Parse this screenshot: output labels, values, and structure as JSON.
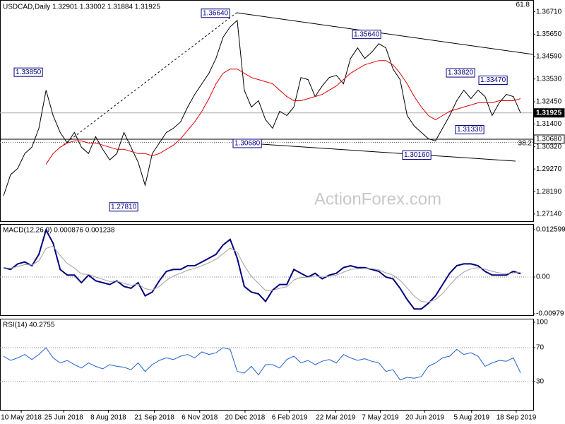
{
  "chart_data": [
    {
      "type": "line",
      "title": "USDCAD,Daily 1.32901 1.33002 1.31884 1.31925",
      "ylim": [
        1.268,
        1.372
      ],
      "yticks": [
        {
          "value": 1.3671,
          "label": "1.36710"
        },
        {
          "value": 1.3565,
          "label": "1.35650"
        },
        {
          "value": 1.3459,
          "label": "1.34590"
        },
        {
          "value": 1.3353,
          "label": "1.33530"
        },
        {
          "value": 1.3245,
          "label": "1.32450"
        },
        {
          "value": 1.314,
          "label": "1.31400"
        },
        {
          "value": 1.3032,
          "label": "1.30320"
        },
        {
          "value": 1.2927,
          "label": "1.29270"
        },
        {
          "value": 1.2819,
          "label": "1.28190"
        },
        {
          "value": 1.2714,
          "label": "1.27140"
        }
      ],
      "series": [
        {
          "color": "#000000",
          "values": [
            1.28,
            1.29,
            1.293,
            1.3,
            1.303,
            1.312,
            1.33,
            1.318,
            1.31,
            1.305,
            1.31,
            1.303,
            1.3,
            1.308,
            1.302,
            1.297,
            1.3,
            1.31,
            1.303,
            1.296,
            1.285,
            1.3,
            1.305,
            1.31,
            1.312,
            1.315,
            1.322,
            1.328,
            1.333,
            1.338,
            1.345,
            1.355,
            1.36,
            1.363,
            1.33,
            1.322,
            1.325,
            1.316,
            1.312,
            1.32,
            1.318,
            1.322,
            1.336,
            1.335,
            1.327,
            1.332,
            1.336,
            1.337,
            1.333,
            1.345,
            1.35,
            1.345,
            1.348,
            1.352,
            1.35,
            1.34,
            1.335,
            1.318,
            1.313,
            1.31,
            1.307,
            1.306,
            1.312,
            1.318,
            1.325,
            1.33,
            1.326,
            1.33,
            1.327,
            1.318,
            1.324,
            1.328,
            1.327,
            1.31925
          ]
        },
        {
          "color": "#e00000",
          "values": [
            null,
            null,
            null,
            null,
            null,
            null,
            1.295,
            1.3,
            1.303,
            1.305,
            1.306,
            1.306,
            1.305,
            1.305,
            1.304,
            1.303,
            1.302,
            1.302,
            1.301,
            1.3,
            1.3,
            1.299,
            1.3,
            1.302,
            1.304,
            1.307,
            1.311,
            1.315,
            1.32,
            1.326,
            1.333,
            1.338,
            1.34,
            1.34,
            1.338,
            1.336,
            1.335,
            1.334,
            1.333,
            1.33,
            1.327,
            1.325,
            1.325,
            1.326,
            1.327,
            1.328,
            1.33,
            1.332,
            1.335,
            1.338,
            1.34,
            1.342,
            1.343,
            1.344,
            1.344,
            1.342,
            1.338,
            1.333,
            1.327,
            1.322,
            1.318,
            1.316,
            1.318,
            1.32,
            1.321,
            1.322,
            1.323,
            1.324,
            1.324,
            1.324,
            1.325,
            1.325,
            1.325,
            1.326
          ]
        }
      ],
      "annotations": [
        {
          "value": 1.3664,
          "label": "1.36640"
        },
        {
          "value": 1.3385,
          "label": "1.33850"
        },
        {
          "value": 1.3564,
          "label": "1.35640"
        },
        {
          "value": 1.3382,
          "label": "1.33820"
        },
        {
          "value": 1.3347,
          "label": "1.33470"
        },
        {
          "value": 1.3133,
          "label": "1.31330"
        },
        {
          "value": 1.3068,
          "label": "1.30680"
        },
        {
          "value": 1.3016,
          "label": "1.30160"
        },
        {
          "value": 1.2781,
          "label": "1.27810"
        }
      ],
      "price_labels": [
        {
          "value": 1.31925,
          "label": "1.31925"
        },
        {
          "value": 1.3068,
          "label": "1.30680"
        }
      ],
      "fib_labels": [
        "61.8",
        "38.2"
      ],
      "watermark": "ActionForex.com"
    },
    {
      "type": "line",
      "title": "MACD(12,26,9) 0.000876 0.001238",
      "ylim": [
        -0.01015,
        0.0139
      ],
      "yticks": [
        0.012599,
        {
          "value": 0,
          "label": "0.00"
        },
        -0.00979
      ],
      "hlines": [
        0
      ],
      "series": [
        {
          "color": "#000080",
          "width": 2,
          "values": [
            0.0025,
            0.002,
            0.0035,
            0.004,
            0.003,
            0.006,
            0.0125,
            0.009,
            0.002,
            0.0005,
            0.0005,
            -0.0015,
            0.0005,
            -0.001,
            -0.0015,
            -0.002,
            -0.001,
            -0.0025,
            -0.003,
            -0.0015,
            -0.005,
            -0.004,
            -0.001,
            0.0015,
            0.002,
            0.002,
            0.003,
            0.003,
            0.004,
            0.005,
            0.006,
            0.0085,
            0.01,
            0.005,
            -0.0025,
            -0.004,
            -0.0045,
            -0.0065,
            -0.0035,
            -0.002,
            -0.002,
            0.002,
            0.001,
            0,
            0.001,
            -0.0005,
            0.0005,
            0.001,
            0.0025,
            0.003,
            0.0025,
            0.0025,
            0.002,
            0.0015,
            0,
            -0.0005,
            -0.003,
            -0.006,
            -0.0085,
            -0.0085,
            -0.007,
            -0.005,
            -0.002,
            0.001,
            0.003,
            0.0035,
            0.0035,
            0.003,
            0.0015,
            0.0005,
            0.0005,
            0.0005,
            0.0015,
            0.000876
          ]
        },
        {
          "color": "#a0a0a0",
          "width": 1,
          "values": [
            0.0025,
            0.0023,
            0.0028,
            0.0033,
            0.0032,
            0.0043,
            0.0076,
            0.0082,
            0.0057,
            0.0036,
            0.0024,
            0.0008,
            0.0007,
            0,
            -0.0006,
            -0.0012,
            -0.0011,
            -0.0017,
            -0.0022,
            -0.0019,
            -0.0031,
            -0.0035,
            -0.0025,
            -0.0009,
            0.0003,
            0.001,
            0.0018,
            0.0023,
            0.003,
            0.0038,
            0.0047,
            0.0062,
            0.0077,
            0.0066,
            0.003,
            0.0002,
            -0.0017,
            -0.0036,
            -0.0036,
            -0.003,
            -0.0026,
            -0.0008,
            -0.0001,
            -0.0001,
            0.0003,
            0,
            0.0002,
            0.0005,
            0.0013,
            0.002,
            0.0022,
            0.0023,
            0.0022,
            0.0019,
            0.0011,
            0.0005,
            -0.0009,
            -0.0029,
            -0.0051,
            -0.0065,
            -0.0067,
            -0.006,
            -0.0044,
            -0.0022,
            -0.0001,
            0.0013,
            0.0022,
            0.0025,
            0.0021,
            0.0015,
            0.0011,
            0.0009,
            0.0011,
            0.001238
          ]
        }
      ]
    },
    {
      "type": "line",
      "title": "RSI(14) 40.2755",
      "ylim": [
        -3.3,
        103.3
      ],
      "yticks": [
        100,
        70,
        30
      ],
      "hlines": [
        70,
        30
      ],
      "xlim": [
        -0.5,
        74.8
      ],
      "xticks": [
        {
          "value": 2.5,
          "label": "10 May 2018"
        },
        {
          "value": 8.5,
          "label": "25 Jun 2018"
        },
        {
          "value": 14.8,
          "label": "8 Aug 2018"
        },
        {
          "value": 21.3,
          "label": "21 Sep 2018"
        },
        {
          "value": 27.7,
          "label": "6 Nov 2018"
        },
        {
          "value": 34.1,
          "label": "20 Dec 2018"
        },
        {
          "value": 40.4,
          "label": "6 Feb 2019"
        },
        {
          "value": 46.9,
          "label": "22 Mar 2019"
        },
        {
          "value": 53.2,
          "label": "7 May 2019"
        },
        {
          "value": 59.5,
          "label": "20 Jun 2019"
        },
        {
          "value": 66.1,
          "label": "5 Aug 2019"
        },
        {
          "value": 72.4,
          "label": "18 Sep 2019"
        }
      ],
      "series": [
        {
          "color": "#1f5fd0",
          "width": 1,
          "values": [
            60,
            55,
            58,
            62,
            56,
            62,
            70,
            58,
            52,
            55,
            50,
            46,
            52,
            48,
            45,
            50,
            48,
            47,
            44,
            52,
            42,
            50,
            55,
            58,
            56,
            60,
            62,
            58,
            65,
            62,
            64,
            70,
            68,
            42,
            40,
            48,
            38,
            50,
            50,
            46,
            56,
            60,
            52,
            55,
            50,
            54,
            56,
            52,
            62,
            58,
            55,
            57,
            54,
            52,
            42,
            44,
            32,
            35,
            34,
            36,
            48,
            52,
            58,
            60,
            68,
            62,
            64,
            60,
            48,
            52,
            55,
            54,
            58,
            40.2755
          ]
        }
      ]
    }
  ]
}
